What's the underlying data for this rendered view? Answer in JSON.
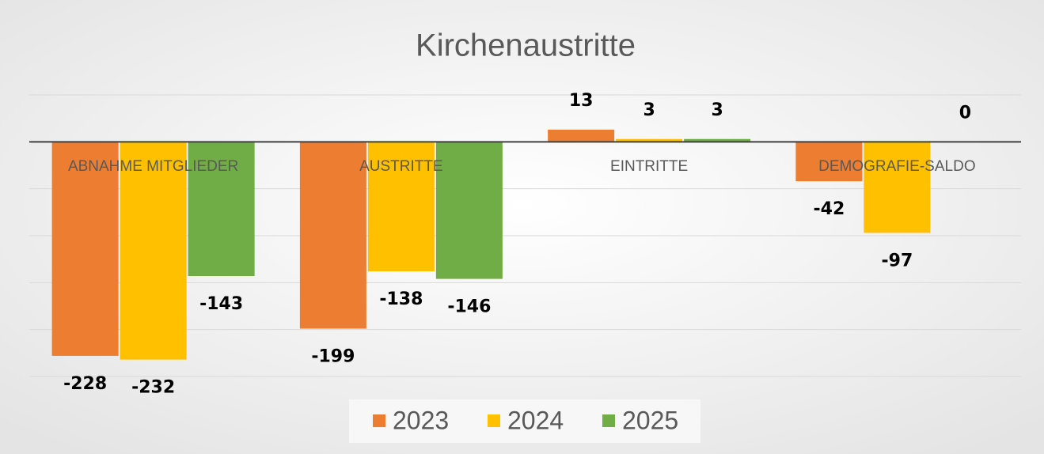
{
  "chart_data": {
    "type": "bar",
    "title": "Kirchenaustritte",
    "categories": [
      "ABNAHME MITGLIEDER",
      "AUSTRITTE",
      "EINTRITTE",
      "DEMOGRAFIE-SALDO"
    ],
    "series": [
      {
        "name": "2023",
        "color": "#ed7d31",
        "values": [
          -228,
          -199,
          13,
          -42
        ]
      },
      {
        "name": "2024",
        "color": "#ffc000",
        "values": [
          -232,
          -138,
          3,
          -97
        ]
      },
      {
        "name": "2025",
        "color": "#70ad47",
        "values": [
          -143,
          -146,
          3,
          0
        ]
      }
    ],
    "ylim": [
      -250,
      50
    ],
    "yticks": [
      -250,
      -200,
      -150,
      -100,
      -50,
      0,
      50
    ],
    "grid": true,
    "legend": "bottom"
  }
}
